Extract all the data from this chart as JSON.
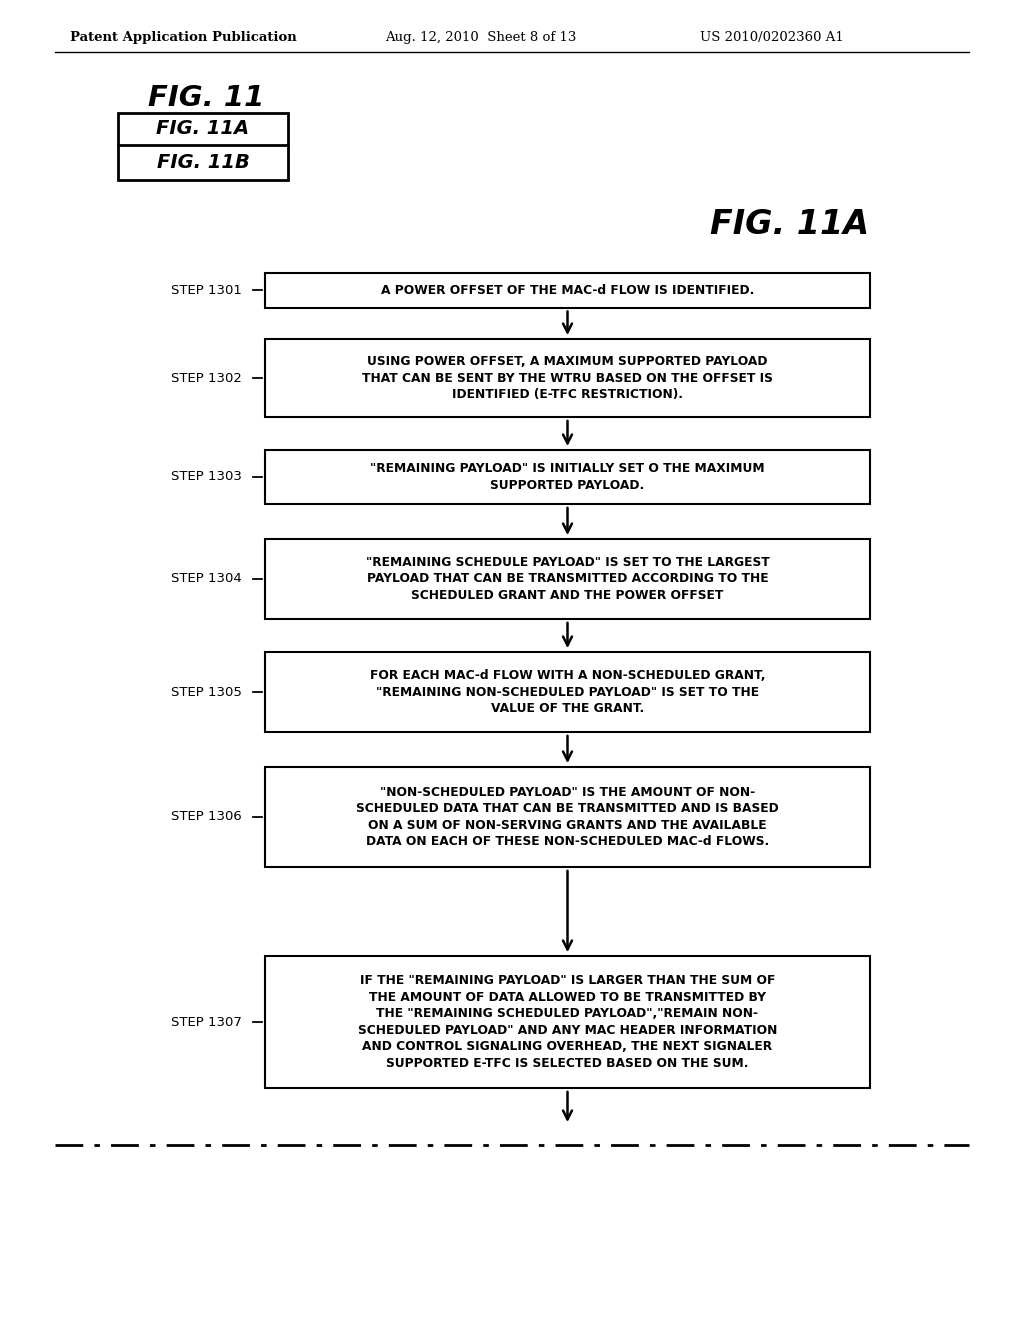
{
  "bg_color": "#ffffff",
  "header_left": "Patent Application Publication",
  "header_mid": "Aug. 12, 2010  Sheet 8 of 13",
  "header_right": "US 2010/0202360 A1",
  "fig_title_main": "FIG. 11",
  "fig_11a_label": "FIG. 11A",
  "fig_11b_label": "FIG. 11B",
  "fig_11a_title": "FIG. 11A",
  "steps": [
    {
      "id": "STEP 1301",
      "text": "A POWER OFFSET OF THE MAC-d FLOW IS IDENTIFIED."
    },
    {
      "id": "STEP 1302",
      "text": "USING POWER OFFSET, A MAXIMUM SUPPORTED PAYLOAD\nTHAT CAN BE SENT BY THE WTRU BASED ON THE OFFSET IS\nIDENTIFIED (E-TFC RESTRICTION)."
    },
    {
      "id": "STEP 1303",
      "text": "\"REMAINING PAYLOAD\" IS INITIALLY SET O THE MAXIMUM\nSUPPORTED PAYLOAD."
    },
    {
      "id": "STEP 1304",
      "text": "\"REMAINING SCHEDULE PAYLOAD\" IS SET TO THE LARGEST\nPAYLOAD THAT CAN BE TRANSMITTED ACCORDING TO THE\nSCHEDULED GRANT AND THE POWER OFFSET"
    },
    {
      "id": "STEP 1305",
      "text": "FOR EACH MAC-d FLOW WITH A NON-SCHEDULED GRANT,\n\"REMAINING NON-SCHEDULED PAYLOAD\" IS SET TO THE\nVALUE OF THE GRANT."
    },
    {
      "id": "STEP 1306",
      "text": "\"NON-SCHEDULED PAYLOAD\" IS THE AMOUNT OF NON-\nSCHEDULED DATA THAT CAN BE TRANSMITTED AND IS BASED\nON A SUM OF NON-SERVING GRANTS AND THE AVAILABLE\nDATA ON EACH OF THESE NON-SCHEDULED MAC-d FLOWS."
    },
    {
      "id": "STEP 1307",
      "text": "IF THE \"REMAINING PAYLOAD\" IS LARGER THAN THE SUM OF\nTHE AMOUNT OF DATA ALLOWED TO BE TRANSMITTED BY\nTHE \"REMAINING SCHEDULED PAYLOAD\",\"REMAIN NON-\nSCHEDULED PAYLOAD\" AND ANY MAC HEADER INFORMATION\nAND CONTROL SIGNALING OVERHEAD, THE NEXT SIGNALER\nSUPPORTED E-TFC IS SELECTED BASED ON THE SUM."
    }
  ]
}
